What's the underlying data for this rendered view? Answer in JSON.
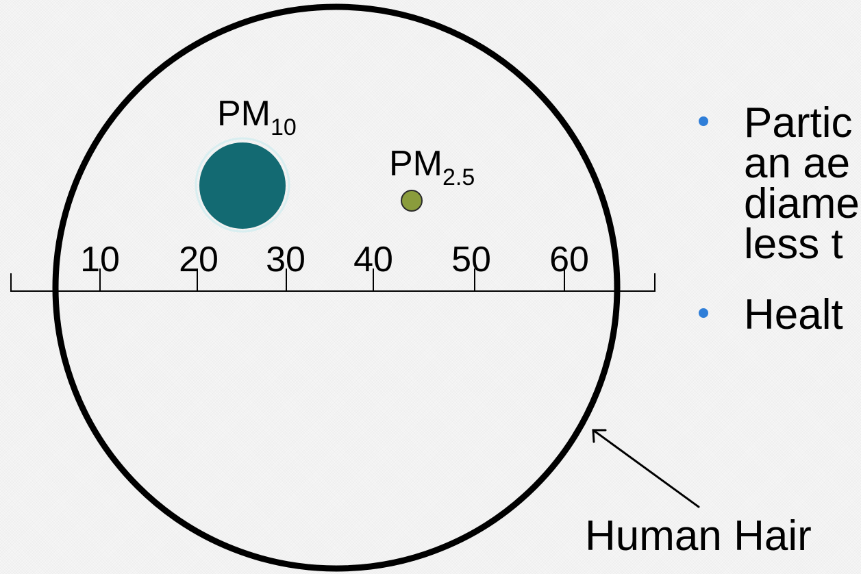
{
  "diagram": {
    "scale_ticks": [
      "10",
      "20",
      "30",
      "40",
      "50",
      "60"
    ],
    "pm10": {
      "base": "PM",
      "sub": "10",
      "color": "#136a72"
    },
    "pm25": {
      "base": "PM",
      "sub": "2.5",
      "color": "#8a9c3c"
    },
    "hair_label": "Human Hair",
    "hair_color": "#000000"
  },
  "bullets": {
    "color": "#2f7ed8",
    "items": [
      {
        "lines": [
          "Partic",
          "an ae",
          "diame",
          "less t"
        ]
      },
      {
        "lines": [
          "Healt"
        ]
      }
    ]
  }
}
